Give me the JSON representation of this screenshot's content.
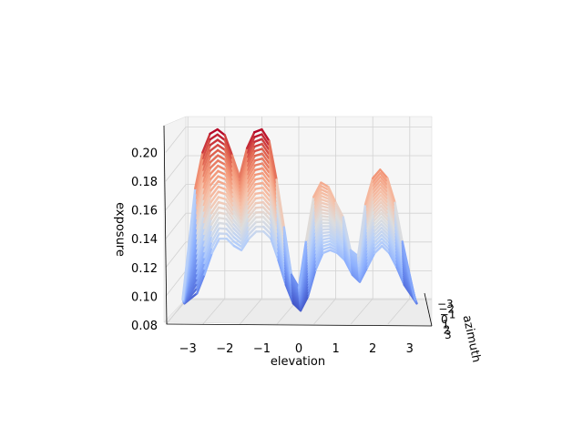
{
  "chart_data": {
    "type": "surface3d",
    "colormap": "coolwarm",
    "grid": true,
    "xlabel": "elevation",
    "ylabel": "azimuth",
    "zlabel": "exposure",
    "x_ticks": [
      -3,
      -2,
      -1,
      0,
      1,
      2,
      3
    ],
    "y_ticks": [
      -3,
      -2,
      -1,
      0,
      1,
      2,
      3
    ],
    "z_ticks": [
      0.08,
      0.1,
      0.12,
      0.14,
      0.16,
      0.18,
      0.2
    ],
    "x_tick_labels": [
      "−3",
      "−2",
      "−1",
      "0",
      "1",
      "2",
      "3"
    ],
    "y_tick_labels": [
      "−3",
      "−2",
      "−1",
      "0",
      "1",
      "2",
      "3"
    ],
    "z_tick_labels": [
      "0.08",
      "0.10",
      "0.12",
      "0.14",
      "0.16",
      "0.18",
      "0.20"
    ],
    "xlim": [
      -3.5,
      3.5
    ],
    "ylim": [
      -3.5,
      3.5
    ],
    "zlim": [
      0.08,
      0.22
    ],
    "profile": {
      "x": [
        -3.14,
        -2.8,
        -2.6,
        -2.4,
        -2.2,
        -2.0,
        -1.8,
        -1.6,
        -1.4,
        -1.2,
        -1.0,
        -0.8,
        -0.6,
        -0.4,
        -0.2,
        0.0,
        0.2,
        0.4,
        0.6,
        0.8,
        1.0,
        1.2,
        1.4,
        1.6,
        1.8,
        2.0,
        2.2,
        2.4,
        2.6,
        2.8,
        3.14
      ],
      "z_max": [
        0.098,
        0.175,
        0.2,
        0.213,
        0.216,
        0.212,
        0.198,
        0.183,
        0.203,
        0.214,
        0.216,
        0.208,
        0.181,
        0.148,
        0.115,
        0.106,
        0.139,
        0.169,
        0.179,
        0.176,
        0.165,
        0.155,
        0.132,
        0.128,
        0.164,
        0.182,
        0.188,
        0.182,
        0.165,
        0.138,
        0.098
      ],
      "z_min": [
        0.095,
        0.102,
        0.115,
        0.13,
        0.14,
        0.14,
        0.135,
        0.132,
        0.14,
        0.145,
        0.145,
        0.14,
        0.125,
        0.108,
        0.095,
        0.09,
        0.1,
        0.118,
        0.13,
        0.132,
        0.13,
        0.125,
        0.115,
        0.11,
        0.12,
        0.13,
        0.135,
        0.13,
        0.12,
        0.108,
        0.095
      ]
    }
  }
}
